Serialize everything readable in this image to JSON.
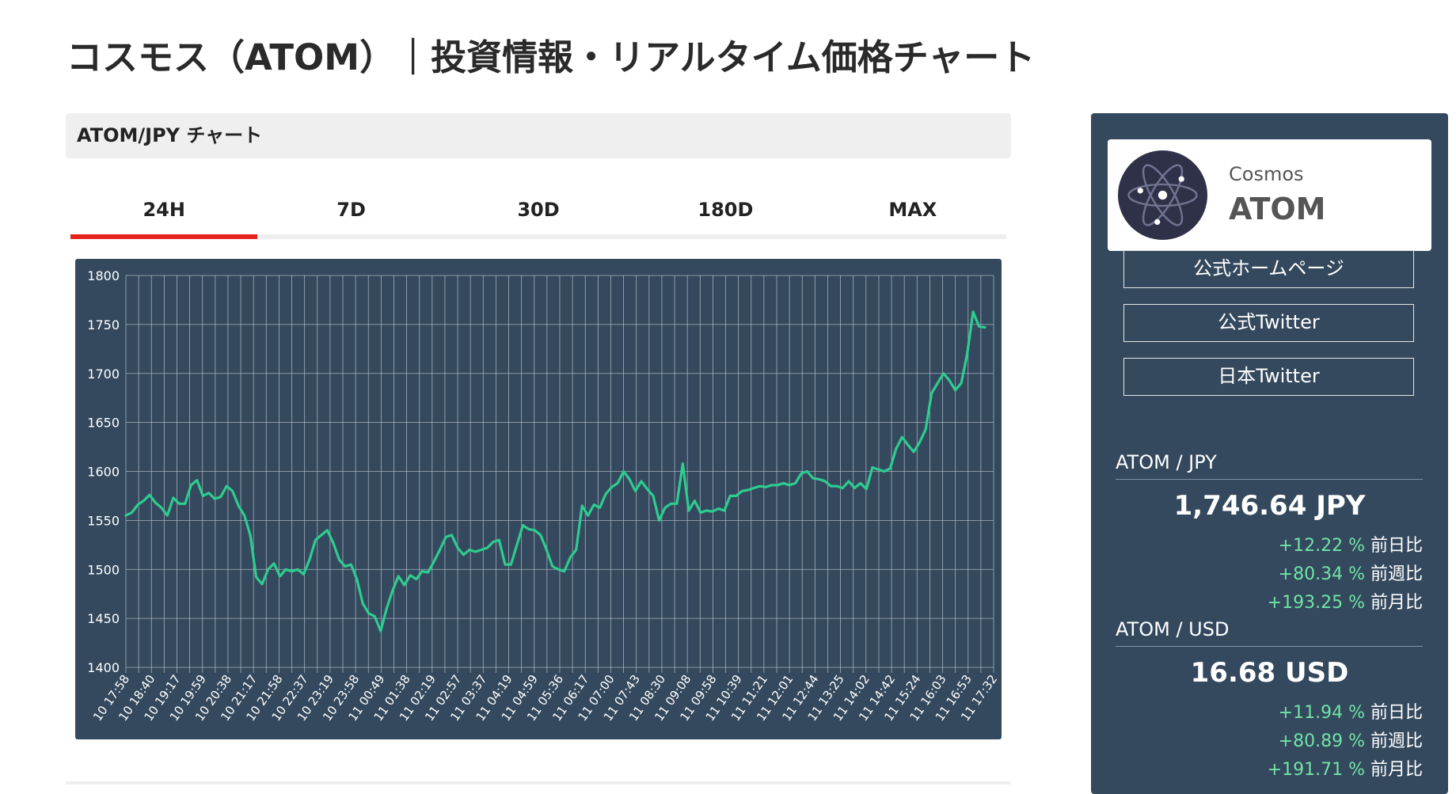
{
  "page": {
    "title": "コスモス（ATOM）｜投資情報・リアルタイム価格チャート"
  },
  "chart_section": {
    "header": "ATOM/JPY チャート",
    "tabs": [
      {
        "label": "24H",
        "active": true
      },
      {
        "label": "7D",
        "active": false
      },
      {
        "label": "30D",
        "active": false
      },
      {
        "label": "180D",
        "active": false
      },
      {
        "label": "MAX",
        "active": false
      }
    ]
  },
  "colors": {
    "accent_red": "#e4231d",
    "panel_bg": "#34495e",
    "line_green": "#2ecc8f",
    "positive_green": "#70e3a5"
  },
  "chart_data": {
    "type": "line",
    "title": "",
    "xlabel": "",
    "ylabel": "",
    "ylim": [
      1400,
      1800
    ],
    "yticks": [
      1400,
      1450,
      1500,
      1550,
      1600,
      1650,
      1700,
      1750,
      1800
    ],
    "grid": true,
    "x_tick_labels": [
      "10 17:58",
      "10 18:40",
      "10 19:17",
      "10 19:59",
      "10 20:38",
      "10 21:17",
      "10 21:58",
      "10 22:37",
      "10 23:19",
      "10 23:58",
      "11 00:49",
      "11 01:38",
      "11 02:19",
      "11 02:57",
      "11 03:37",
      "11 04:19",
      "11 04:59",
      "11 05:36",
      "11 06:17",
      "11 07:00",
      "11 07:43",
      "11 08:30",
      "11 09:08",
      "11 09:58",
      "11 10:39",
      "11 11:21",
      "11 12:01",
      "11 12:44",
      "11 13:25",
      "11 14:02",
      "11 14:42",
      "11 15:24",
      "11 16:03",
      "11 16:53",
      "11 17:32"
    ],
    "series": [
      {
        "values": [
          1555,
          1558,
          1566,
          1570,
          1576,
          1568,
          1563,
          1555,
          1573,
          1567,
          1567,
          1586,
          1591,
          1575,
          1578,
          1572,
          1574,
          1585,
          1580,
          1565,
          1555,
          1535,
          1492,
          1485,
          1500,
          1506,
          1493,
          1500,
          1498,
          1500,
          1495,
          1510,
          1530,
          1535,
          1540,
          1527,
          1510,
          1503,
          1505,
          1490,
          1465,
          1455,
          1452,
          1437,
          1460,
          1478,
          1493,
          1484,
          1494,
          1490,
          1498,
          1497,
          1508,
          1520,
          1533,
          1535,
          1522,
          1515,
          1520,
          1518,
          1520,
          1522,
          1528,
          1530,
          1505,
          1505,
          1525,
          1545,
          1541,
          1540,
          1535,
          1520,
          1503,
          1500,
          1498,
          1512,
          1520,
          1565,
          1555,
          1566,
          1563,
          1577,
          1584,
          1588,
          1600,
          1592,
          1580,
          1590,
          1582,
          1575,
          1550,
          1563,
          1567,
          1567,
          1608,
          1560,
          1570,
          1558,
          1560,
          1559,
          1562,
          1560,
          1575,
          1575,
          1580,
          1581,
          1583,
          1585,
          1584,
          1586,
          1586,
          1588,
          1586,
          1588,
          1598,
          1600,
          1593,
          1592,
          1590,
          1585,
          1585,
          1583,
          1590,
          1583,
          1588,
          1582,
          1604,
          1602,
          1600,
          1603,
          1623,
          1635,
          1627,
          1620,
          1630,
          1643,
          1680,
          1690,
          1700,
          1693,
          1683,
          1690,
          1720,
          1763,
          1748,
          1747
        ]
      }
    ]
  },
  "sidebar": {
    "coin": {
      "name": "Cosmos",
      "symbol": "ATOM",
      "logo_icon": "cosmos-atom-logo"
    },
    "links": [
      {
        "label": "公式ホームページ"
      },
      {
        "label": "公式Twitter"
      },
      {
        "label": "日本Twitter"
      }
    ],
    "pairs": [
      {
        "label": "ATOM / JPY",
        "price": "1,746.64 JPY",
        "changes": [
          {
            "value": "+12.22 %",
            "period": "前日比"
          },
          {
            "value": "+80.34 %",
            "period": "前週比"
          },
          {
            "value": "+193.25 %",
            "period": "前月比"
          }
        ]
      },
      {
        "label": "ATOM / USD",
        "price": "16.68 USD",
        "changes": [
          {
            "value": "+11.94 %",
            "period": "前日比"
          },
          {
            "value": "+80.89 %",
            "period": "前週比"
          },
          {
            "value": "+191.71 %",
            "period": "前月比"
          }
        ]
      }
    ]
  }
}
